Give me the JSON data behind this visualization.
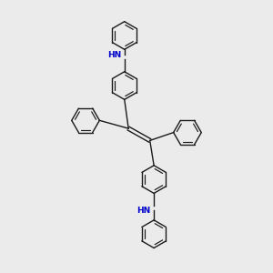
{
  "bg_color": "#ebebeb",
  "bond_color": "#1a1a1a",
  "N_color": "#0000cc",
  "lw": 1.0,
  "lw_double": 0.85,
  "fig_size": [
    3.0,
    3.0
  ],
  "dpi": 100,
  "ring_r": 0.52,
  "xlim": [
    0,
    10
  ],
  "ylim": [
    0,
    10
  ]
}
